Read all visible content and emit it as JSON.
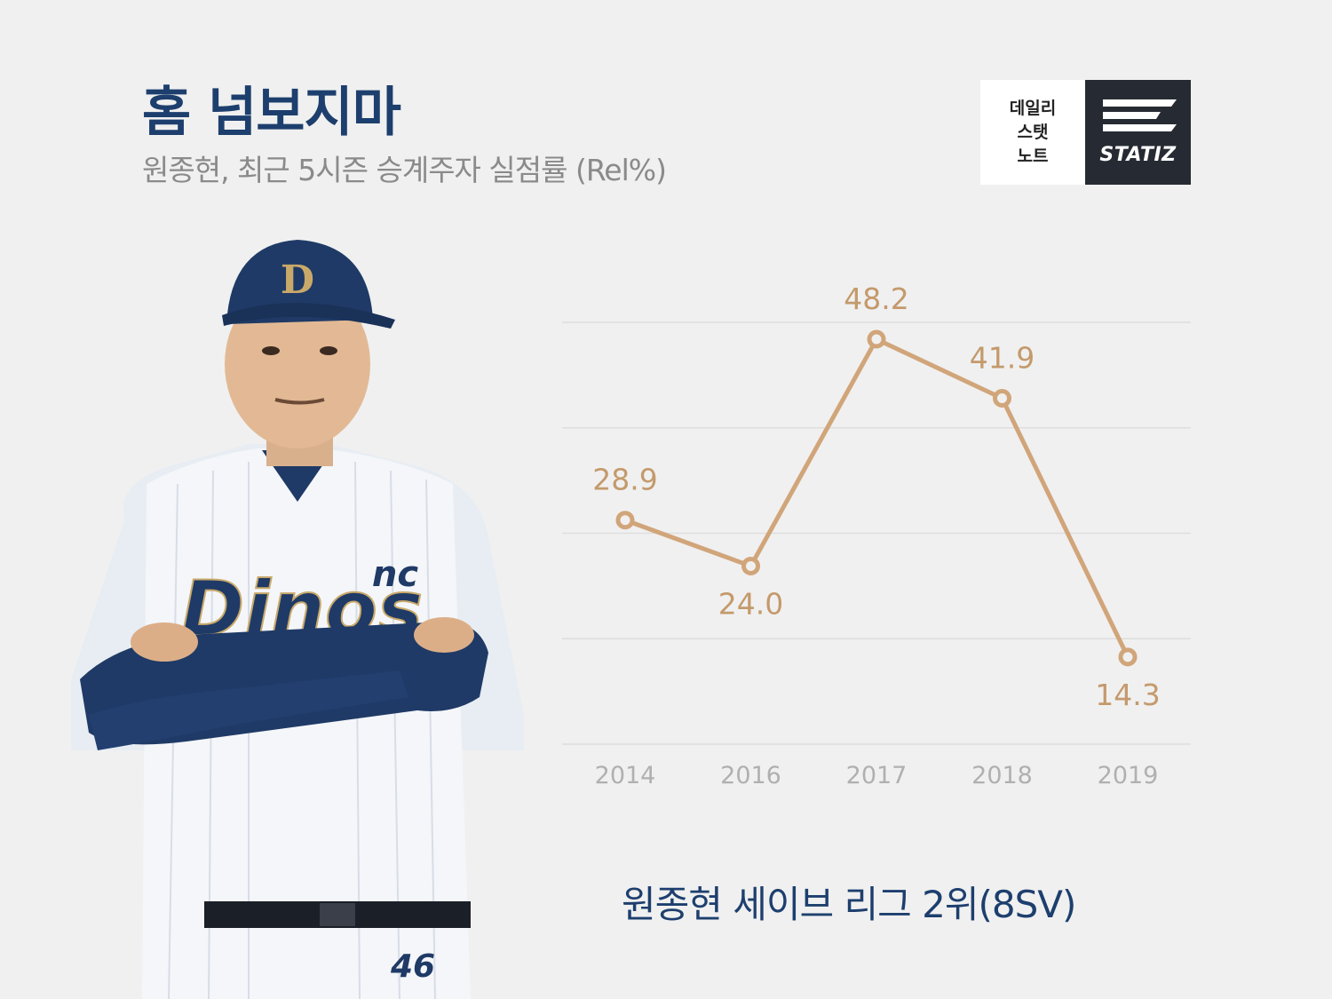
{
  "header": {
    "title": "홈 넘보지마",
    "subtitle": "원종현, 최근 5시즌 승계주자 실점률 (Rel%)"
  },
  "logo": {
    "lines": [
      "데일리",
      "스탯",
      "노트"
    ],
    "brand": "STATIZ"
  },
  "caption": "원종현 세이브 리그 2위(8SV)",
  "colors": {
    "line": "#d1a57a",
    "label": "#c49a6c",
    "grid": "#dedede",
    "axis_text": "#b0b0b0",
    "title": "#1d3f6e"
  },
  "chart_data": {
    "type": "line",
    "categories": [
      "2014",
      "2016",
      "2017",
      "2018",
      "2019"
    ],
    "values": [
      28.9,
      24.0,
      48.2,
      41.9,
      14.3
    ],
    "data_labels": [
      "28.9",
      "24.0",
      "48.2",
      "41.9",
      "14.3"
    ],
    "ylim": [
      5,
      50
    ],
    "grid": true,
    "title": "",
    "xlabel": "",
    "ylabel": ""
  }
}
